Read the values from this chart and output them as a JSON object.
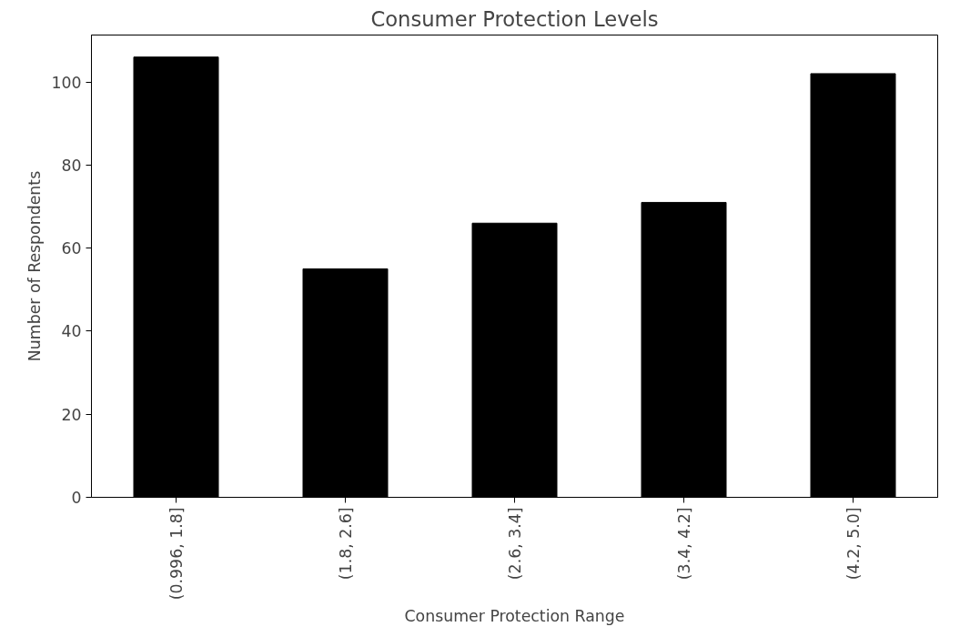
{
  "chart_data": {
    "type": "bar",
    "title": "Consumer Protection Levels",
    "xlabel": "Consumer Protection Range",
    "ylabel": "Number of Respondents",
    "categories": [
      "(0.996, 1.8]",
      "(1.8, 2.6]",
      "(2.6, 3.4]",
      "(3.4, 4.2]",
      "(4.2, 5.0]"
    ],
    "values": [
      106,
      55,
      66,
      71,
      102
    ],
    "color": "#000000",
    "ylim": [
      0,
      111.3
    ],
    "yticks": [
      0,
      20,
      40,
      60,
      80,
      100
    ],
    "grid": false
  }
}
